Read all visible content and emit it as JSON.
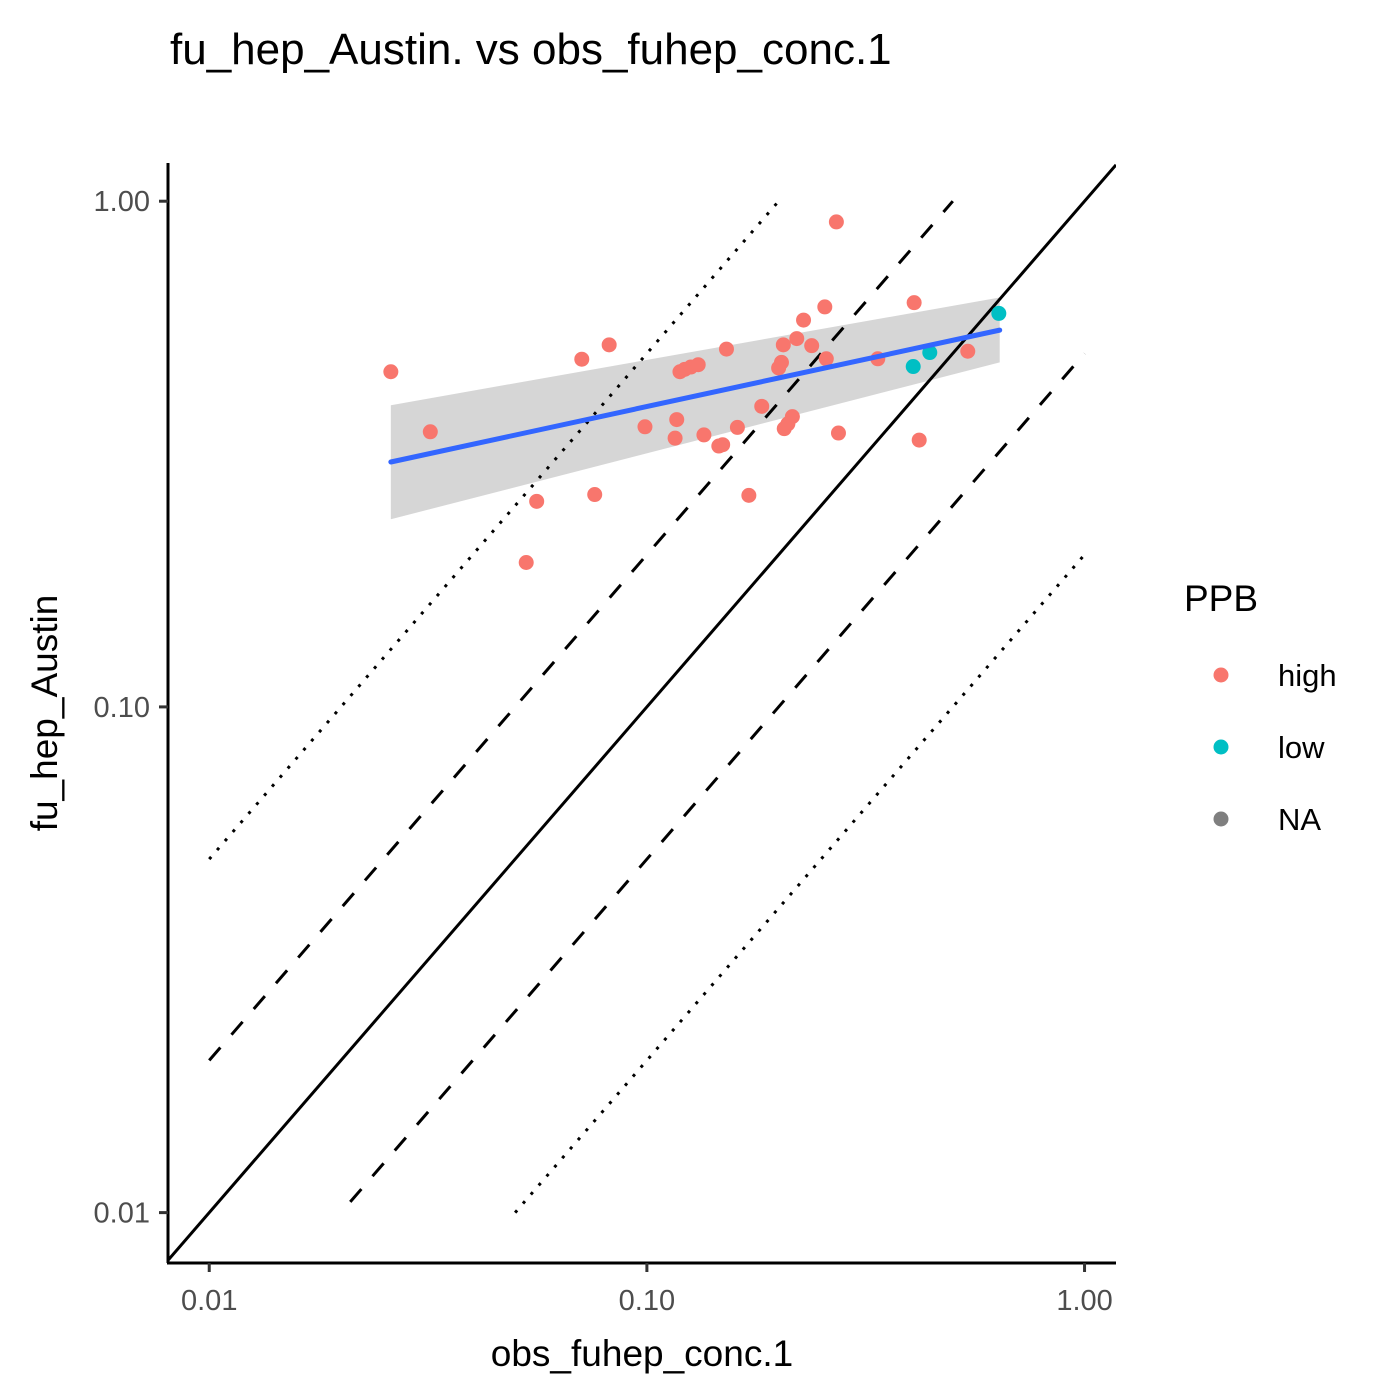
{
  "chart_data": {
    "type": "scatter",
    "title": "fu_hep_Austin. vs obs_fuhep_conc.1",
    "xlabel": "obs_fuhep_conc.1",
    "ylabel": "fu_hep_Austin",
    "xscale": "log10",
    "yscale": "log10",
    "xlim": [
      0.00805,
      1.18
    ],
    "ylim": [
      0.00795,
      1.19
    ],
    "xticks": [
      0.01,
      0.1,
      1.0
    ],
    "xtick_labels": [
      "0.01",
      "0.10",
      "1.00"
    ],
    "yticks": [
      0.01,
      0.1,
      1.0
    ],
    "ytick_labels": [
      "0.01",
      "0.10",
      "1.00"
    ],
    "grid": false,
    "legend": {
      "title": "PPB",
      "position": "right",
      "entries": [
        {
          "label": "high",
          "color": "#F8766D"
        },
        {
          "label": "low",
          "color": "#00BFC4"
        },
        {
          "label": "NA",
          "color": "#7F7F7F"
        }
      ]
    },
    "reference_lines": [
      {
        "name": "identity",
        "style": "solid",
        "factor": 1,
        "x": [
          0.00805,
          1.18
        ]
      },
      {
        "name": "2-fold above",
        "style": "dashed",
        "factor": 2,
        "x": [
          0.01,
          0.5
        ]
      },
      {
        "name": "2-fold below",
        "style": "dashed",
        "factor": 0.5,
        "x": [
          0.021,
          1.0
        ]
      },
      {
        "name": "5-fold above",
        "style": "dotted",
        "factor": 5,
        "x": [
          0.01,
          0.2
        ]
      },
      {
        "name": "5-fold below",
        "style": "dotted",
        "factor": 0.2,
        "x": [
          0.05,
          1.0
        ]
      }
    ],
    "trend": {
      "method": "lm",
      "color": "#3366FF",
      "x": [
        0.026,
        0.64
      ],
      "y": [
        0.305,
        0.556
      ],
      "ci_lower": [
        0.235,
        0.48
      ],
      "ci_upper": [
        0.395,
        0.645
      ]
    },
    "series": [
      {
        "name": "high",
        "color": "#F8766D",
        "x": [
          0.026,
          0.032,
          0.053,
          0.056,
          0.071,
          0.076,
          0.082,
          0.099,
          0.116,
          0.117,
          0.119,
          0.122,
          0.126,
          0.131,
          0.135,
          0.146,
          0.149,
          0.152,
          0.161,
          0.171,
          0.183,
          0.2,
          0.203,
          0.205,
          0.206,
          0.21,
          0.215,
          0.22,
          0.228,
          0.238,
          0.255,
          0.257,
          0.271,
          0.274,
          0.337,
          0.408,
          0.419,
          0.541
        ],
        "y": [
          0.46,
          0.35,
          0.193,
          0.255,
          0.487,
          0.263,
          0.52,
          0.358,
          0.34,
          0.37,
          0.46,
          0.465,
          0.47,
          0.475,
          0.345,
          0.328,
          0.33,
          0.51,
          0.357,
          0.262,
          0.393,
          0.468,
          0.48,
          0.52,
          0.355,
          0.363,
          0.375,
          0.535,
          0.582,
          0.518,
          0.618,
          0.488,
          0.91,
          0.348,
          0.488,
          0.63,
          0.337,
          0.505
        ]
      },
      {
        "name": "low",
        "color": "#00BFC4",
        "x": [
          0.406,
          0.443,
          0.637
        ],
        "y": [
          0.471,
          0.502,
          0.6
        ]
      }
    ]
  }
}
